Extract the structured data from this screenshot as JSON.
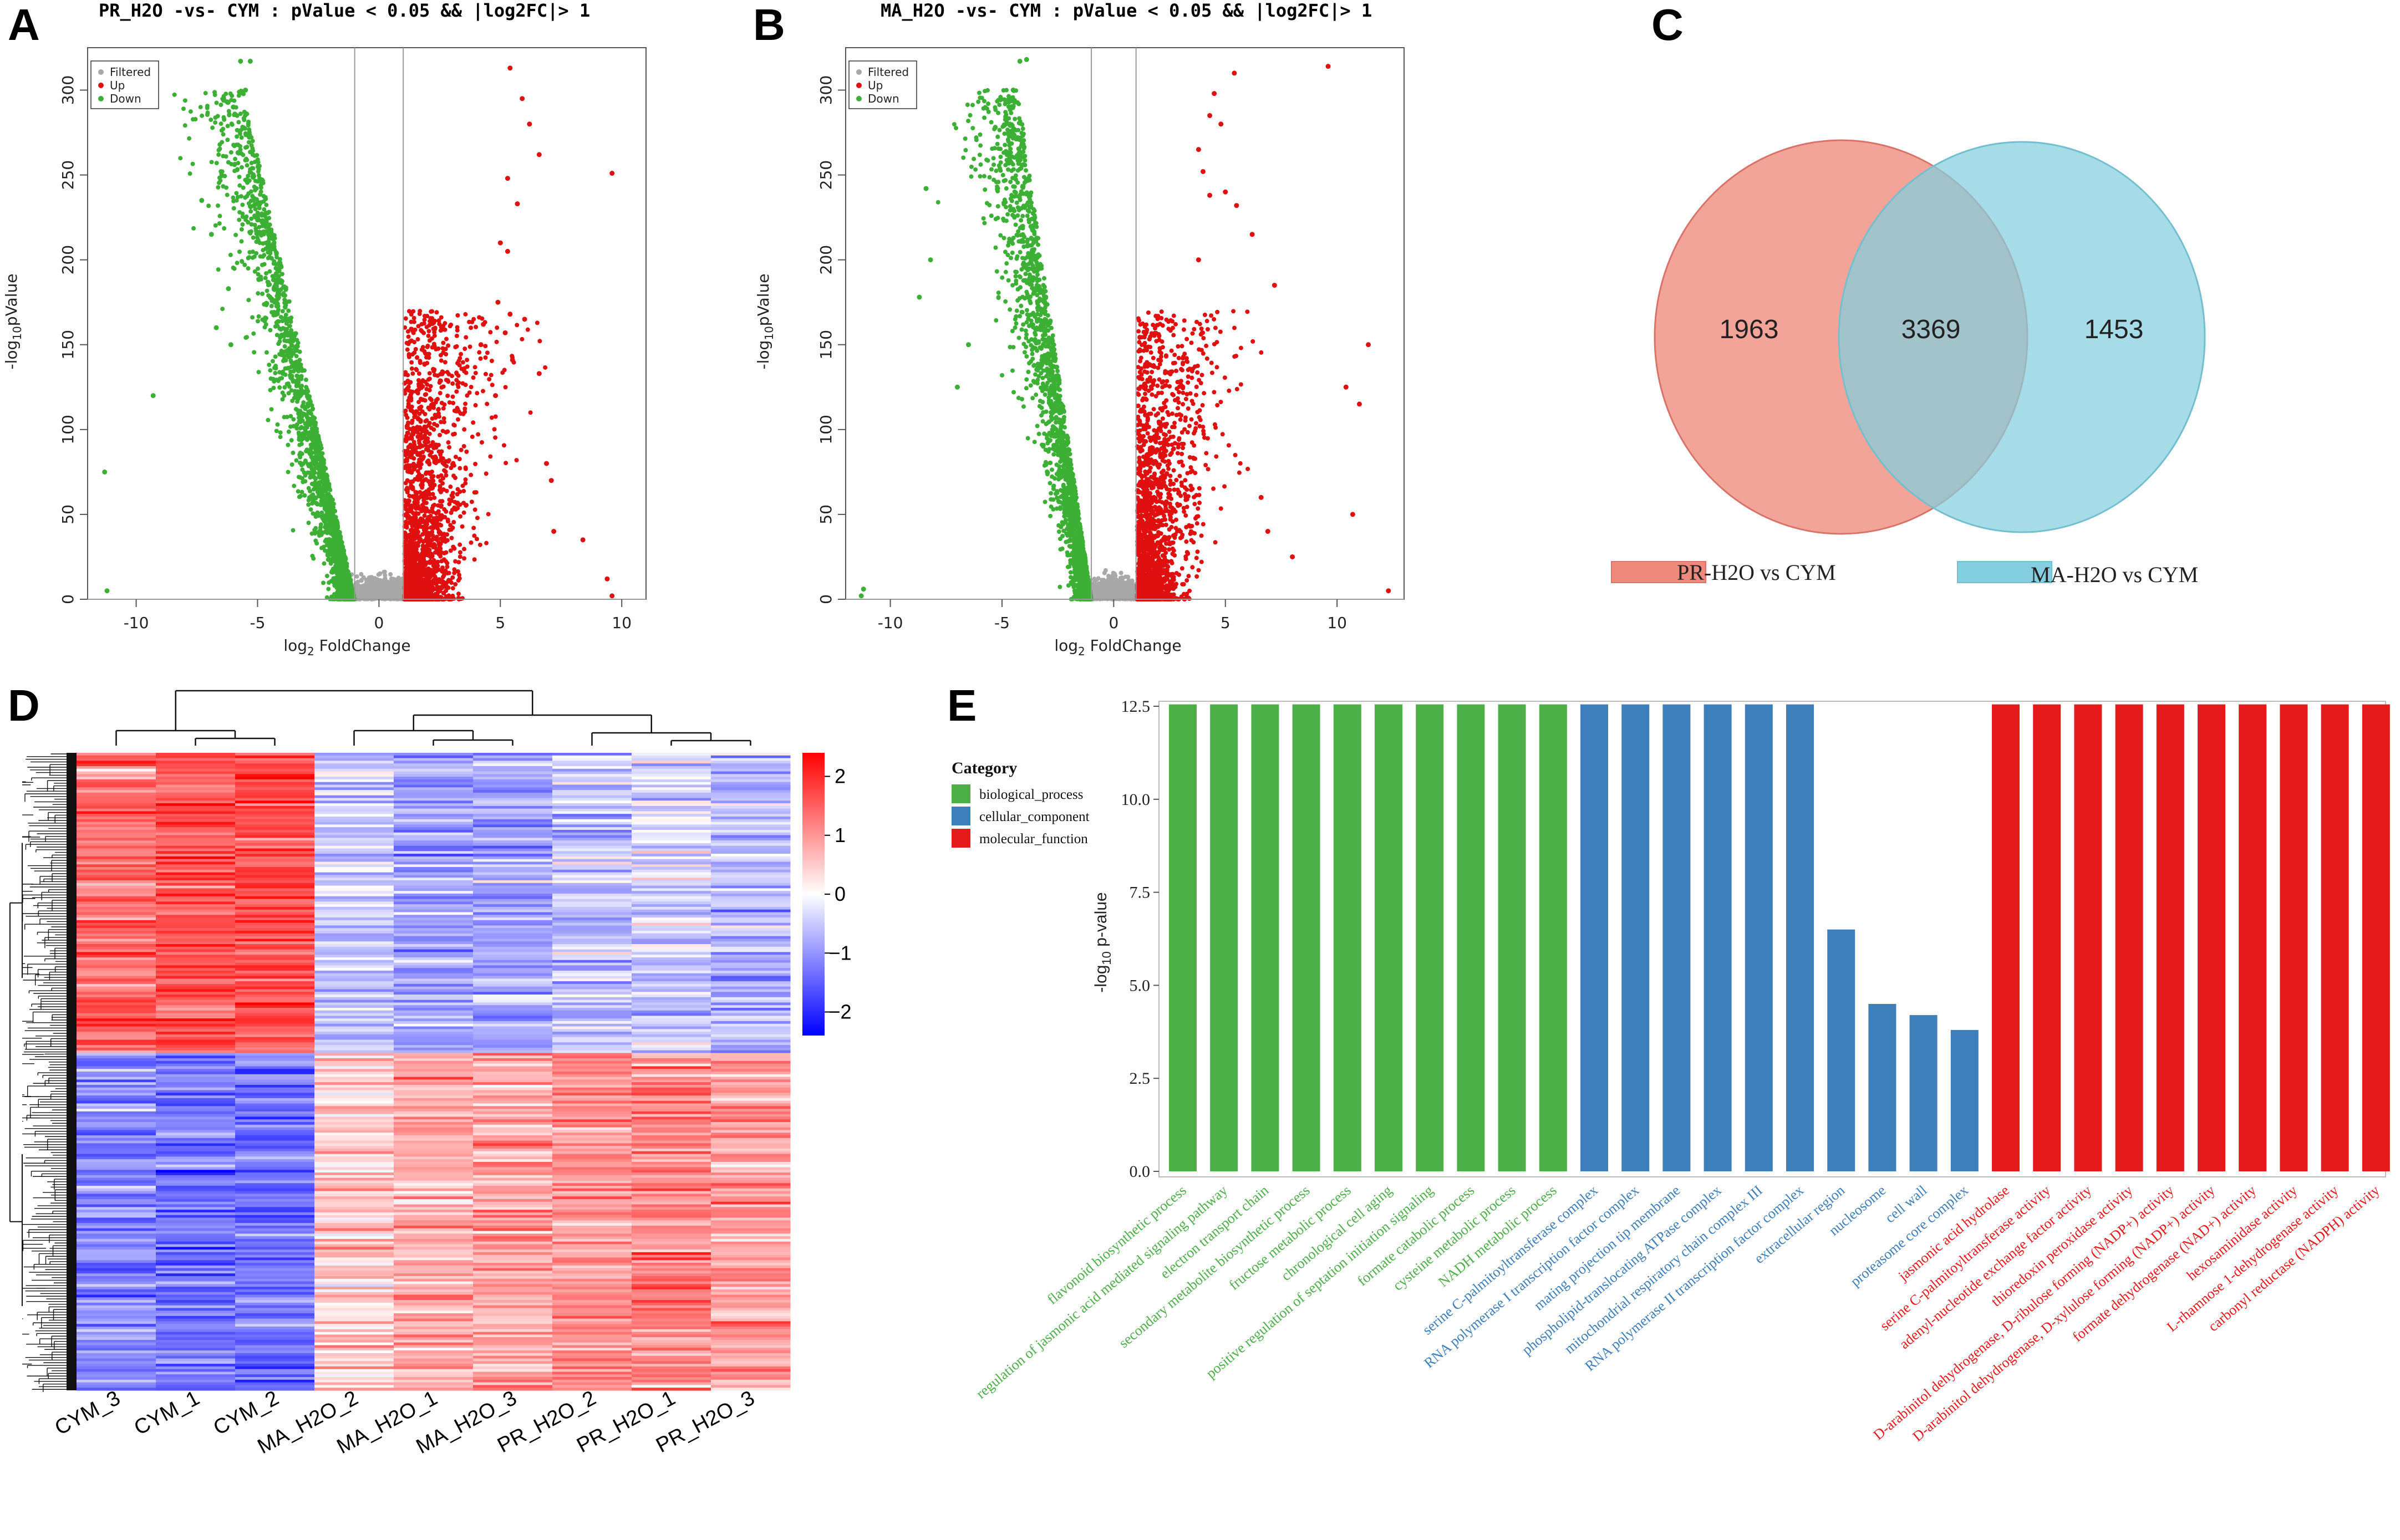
{
  "panels": {
    "A": "A",
    "B": "B",
    "C": "C",
    "D": "D",
    "E": "E"
  },
  "colors": {
    "up": "#e01010",
    "down": "#3cb034",
    "filtered": "#a8a8a8",
    "venn_left": "#ee8a7b",
    "venn_right": "#84cfdf",
    "venn_overlap": "#98a8ad",
    "bp": "#4caf48",
    "cc": "#3d7fba",
    "mf": "#e41a1c",
    "hm_high": "#ff0000",
    "hm_mid": "#ffffff",
    "hm_low": "#0000ff"
  },
  "chart_data": [
    {
      "id": "A",
      "type": "scatter",
      "title": "PR_H2O -vs- CYM : pValue < 0.05 && |log2FC|> 1",
      "xlabel": "log2 FoldChange",
      "ylabel": "-log10pValue",
      "xlim": [
        -12,
        11
      ],
      "ylim": [
        0,
        325
      ],
      "xticks": [
        -10,
        -5,
        0,
        5,
        10
      ],
      "yticks": [
        0,
        50,
        100,
        150,
        200,
        250,
        300
      ],
      "thresholds_x": [
        -1,
        1
      ],
      "legend": [
        "Filtered",
        "Up",
        "Down"
      ],
      "series": [
        {
          "name": "Filtered",
          "color": "#a8a8a8"
        },
        {
          "name": "Up",
          "color": "#e01010",
          "points": [
            [
              5.4,
              313
            ],
            [
              5.9,
              295
            ],
            [
              6.2,
              280
            ],
            [
              6.6,
              262
            ],
            [
              9.6,
              251
            ],
            [
              5.3,
              248
            ],
            [
              5.7,
              233
            ],
            [
              5.0,
              210
            ],
            [
              5.3,
              205
            ],
            [
              4.9,
              175
            ],
            [
              5.4,
              168
            ],
            [
              6.0,
              165
            ],
            [
              4.3,
              162
            ],
            [
              5.2,
              157
            ],
            [
              4.2,
              150
            ],
            [
              6.6,
              133
            ],
            [
              5.5,
              141
            ],
            [
              4.8,
              120
            ],
            [
              6.9,
              80
            ],
            [
              7.1,
              70
            ],
            [
              8.4,
              35
            ],
            [
              9.4,
              12
            ],
            [
              9.6,
              2
            ],
            [
              7.2,
              40
            ]
          ]
        },
        {
          "name": "Down",
          "color": "#3cb034",
          "points": [
            [
              -5.7,
              317
            ],
            [
              -5.3,
              317
            ],
            [
              -5.5,
              300
            ],
            [
              -6.0,
              290
            ],
            [
              -7.3,
              235
            ],
            [
              -9.3,
              120
            ],
            [
              -11.3,
              75
            ],
            [
              -11.2,
              5
            ],
            [
              -6.9,
              215
            ],
            [
              -6.2,
              183
            ],
            [
              -6.7,
              160
            ],
            [
              -6.1,
              150
            ]
          ]
        }
      ]
    },
    {
      "id": "B",
      "type": "scatter",
      "title": "MA_H2O -vs- CYM : pValue < 0.05 && |log2FC|> 1",
      "xlabel": "log2 FoldChange",
      "ylabel": "-log10pValue",
      "xlim": [
        -12,
        13
      ],
      "ylim": [
        0,
        325
      ],
      "xticks": [
        -10,
        -5,
        0,
        5,
        10
      ],
      "yticks": [
        0,
        50,
        100,
        150,
        200,
        250,
        300
      ],
      "thresholds_x": [
        -1,
        1
      ],
      "legend": [
        "Filtered",
        "Up",
        "Down"
      ],
      "series": [
        {
          "name": "Filtered",
          "color": "#a8a8a8"
        },
        {
          "name": "Up",
          "color": "#e01010",
          "points": [
            [
              9.6,
              314
            ],
            [
              5.4,
              310
            ],
            [
              4.5,
              298
            ],
            [
              4.3,
              285
            ],
            [
              4.8,
              280
            ],
            [
              3.8,
              265
            ],
            [
              4.0,
              252
            ],
            [
              5.0,
              240
            ],
            [
              4.3,
              238
            ],
            [
              5.5,
              232
            ],
            [
              6.2,
              215
            ],
            [
              3.8,
              200
            ],
            [
              7.2,
              185
            ],
            [
              11.4,
              150
            ],
            [
              10.4,
              125
            ],
            [
              11.0,
              115
            ],
            [
              10.7,
              50
            ],
            [
              12.3,
              5
            ],
            [
              6.6,
              60
            ],
            [
              6.9,
              40
            ],
            [
              8.0,
              25
            ]
          ]
        },
        {
          "name": "Down",
          "color": "#3cb034",
          "points": [
            [
              -3.9,
              318
            ],
            [
              -4.2,
              317
            ],
            [
              -4.5,
              300
            ],
            [
              -5.3,
              278
            ],
            [
              -8.4,
              242
            ],
            [
              -8.2,
              200
            ],
            [
              -8.7,
              178
            ],
            [
              -6.5,
              150
            ],
            [
              -7.0,
              125
            ],
            [
              -11.2,
              6
            ],
            [
              -11.3,
              2
            ]
          ]
        }
      ]
    },
    {
      "id": "C",
      "type": "venn",
      "sets": [
        "PR-H2O vs CYM",
        "MA-H2O vs CYM"
      ],
      "only_left": "1963",
      "both": "3369",
      "only_right": "1453"
    },
    {
      "id": "D",
      "type": "heatmap",
      "columns": [
        "CYM_3",
        "CYM_1",
        "CYM_2",
        "MA_H2O_2",
        "MA_H2O_1",
        "MA_H2O_3",
        "PR_H2O_2",
        "PR_H2O_1",
        "PR_H2O_3"
      ],
      "column_blocks": [
        {
          "name": "cluster1",
          "rows_fraction": 0.47,
          "means": [
            1.4,
            1.6,
            1.7,
            -0.5,
            -0.9,
            -0.8,
            -0.6,
            -0.4,
            -0.7
          ]
        },
        {
          "name": "cluster2",
          "rows_fraction": 0.53,
          "means": [
            -1.2,
            -1.3,
            -1.3,
            0.5,
            0.8,
            0.9,
            1.0,
            1.1,
            0.9
          ]
        }
      ],
      "colorbar": {
        "ticks": [
          2,
          1,
          0,
          -1,
          -2
        ],
        "tick_labels": [
          "2",
          "1",
          "0",
          "−1",
          "−2"
        ],
        "range": [
          -2.4,
          2.4
        ]
      }
    },
    {
      "id": "E",
      "type": "bar",
      "ylabel": "-log10 p-value",
      "ylim": [
        0,
        12.5
      ],
      "yticks": [
        0.0,
        2.5,
        5.0,
        7.5,
        10.0,
        12.5
      ],
      "ytick_labels": [
        "0.0",
        "2.5",
        "5.0",
        "7.5",
        "10.0",
        "12.5"
      ],
      "legend_title": "Category",
      "legend": [
        {
          "name": "biological_process",
          "color": "#4caf48"
        },
        {
          "name": "cellular_component",
          "color": "#3d7fba"
        },
        {
          "name": "molecular_function",
          "color": "#e41a1c"
        }
      ],
      "categories": [
        "flavonoid biosynthetic process",
        "regulation of jasmonic acid mediated signaling pathway",
        "electron transport chain",
        "secondary metabolite biosynthetic process",
        "fructose metabolic process",
        "chronological cell aging",
        "positive regulation of septation initiation signaling",
        "formate catabolic process",
        "cysteine metabolic process",
        "NADH metabolic process",
        "serine C-palmitoyltransferase complex",
        "RNA polymerase I transcription factor complex",
        "mating projection tip membrane",
        "phospholipid-translocating ATPase complex",
        "mitochondrial respiratory chain complex III",
        "RNA polymerase II transcription factor complex",
        "extracellular region",
        "nucleosome",
        "cell wall",
        "proteasome core complex",
        "jasmonic acid hydrolase",
        "serine C-palmitoyltransferase activity",
        "adenyl-nucleotide exchange factor activity",
        "thioredoxin peroxidase activity",
        "D-arabinitol dehydrogenase, D-ribulose forming (NADP+) activity",
        "D-arabinitol dehydrogenase, D-xylulose forming (NADP+) activity",
        "formate dehydrogenase (NAD+) activity",
        "hexosaminidase activity",
        "L-rhamnose 1-dehydrogenase activity",
        "carbonyl reductase (NADPH) activity"
      ],
      "values": [
        12.6,
        12.6,
        12.6,
        12.6,
        12.6,
        12.6,
        12.6,
        12.6,
        12.6,
        12.6,
        12.6,
        12.6,
        12.6,
        12.6,
        12.6,
        12.6,
        6.5,
        4.5,
        4.2,
        3.8,
        12.6,
        12.6,
        12.6,
        12.6,
        12.6,
        12.6,
        12.6,
        12.6,
        12.6,
        12.6
      ],
      "groups": [
        "bp",
        "bp",
        "bp",
        "bp",
        "bp",
        "bp",
        "bp",
        "bp",
        "bp",
        "bp",
        "cc",
        "cc",
        "cc",
        "cc",
        "cc",
        "cc",
        "cc",
        "cc",
        "cc",
        "cc",
        "mf",
        "mf",
        "mf",
        "mf",
        "mf",
        "mf",
        "mf",
        "mf",
        "mf",
        "mf"
      ]
    }
  ]
}
